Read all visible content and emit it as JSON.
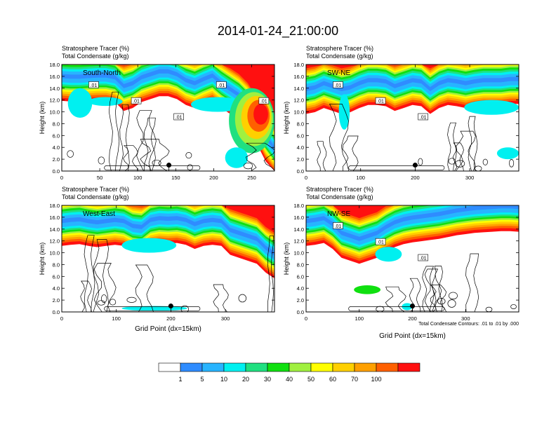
{
  "title": "2014-01-24_21:00:00",
  "chart_data": [
    {
      "type": "heatmap",
      "label": "South-North",
      "var_labels": [
        "Stratosphere Tracer   (%)",
        "Total Condensate   (g/kg)"
      ],
      "ylabel": "Height (km)",
      "xlabel": "",
      "xlim": [
        0,
        280
      ],
      "ylim": [
        0,
        18
      ],
      "xticks": [
        0,
        50,
        100,
        150,
        200,
        250
      ],
      "yticks": [
        "0.0",
        "2.0",
        "4.0",
        "6.0",
        "8.0",
        "10.0",
        "12.0",
        "14.0",
        "16.0",
        "18.0"
      ],
      "contour_labels": [
        ".01",
        ".01",
        ".01",
        ".01",
        ".01"
      ],
      "marker_x": 141,
      "marker_y": 1.0,
      "tracer_base_km": [
        15.7,
        15.6,
        15.6,
        15.7,
        15.8,
        15.8,
        15.5,
        14.0,
        14.5,
        15.5,
        16.0,
        16.5,
        16.5,
        16.0,
        15.0,
        14.5,
        15.2,
        15.8,
        14.5,
        13.5,
        12.5,
        11.0,
        8.5,
        5.5,
        3.5
      ],
      "secondary_features": [
        {
          "x0": 170,
          "x1": 240,
          "y0": 10.0,
          "y1": 12.5,
          "value": 5
        },
        {
          "x0": 220,
          "x1": 280,
          "y0": 3.0,
          "y1": 14.0,
          "value": 70
        },
        {
          "x0": 8,
          "x1": 40,
          "y0": 9.0,
          "y1": 14.0,
          "value": 5
        },
        {
          "x0": 35,
          "x1": 80,
          "y0": 11.0,
          "y1": 12.5,
          "value": 5
        },
        {
          "x0": 215,
          "x1": 245,
          "y0": 0.5,
          "y1": 4.0,
          "value": 5
        }
      ]
    },
    {
      "type": "heatmap",
      "label": "SW-NE",
      "var_labels": [
        "Stratosphere Tracer   (%)",
        "Total Condensate   (g/kg)"
      ],
      "ylabel": "Height (km)",
      "xlabel": "",
      "xlim": [
        0,
        390
      ],
      "ylim": [
        0,
        18
      ],
      "xticks": [
        0,
        100,
        200,
        300
      ],
      "yticks": [
        "0.0",
        "2.0",
        "4.0",
        "6.0",
        "8.0",
        "10.0",
        "12.0",
        "14.0",
        "16.0",
        "18.0"
      ],
      "contour_labels": [
        ".01",
        ".01",
        ".01"
      ],
      "marker_x": 200,
      "marker_y": 1.0,
      "tracer_base_km": [
        13.5,
        13.8,
        14.5,
        14.0,
        13.5,
        13.8,
        14.5,
        15.0,
        15.0,
        14.8,
        14.0,
        14.5,
        15.0,
        14.8,
        13.5,
        14.5,
        15.0,
        14.8,
        14.5,
        14.8,
        15.0,
        15.0,
        15.0,
        15.2,
        15.2
      ],
      "secondary_features": [
        {
          "x0": 290,
          "x1": 390,
          "y0": 9.5,
          "y1": 12.0,
          "value": 5
        },
        {
          "x0": 60,
          "x1": 80,
          "y0": 7.0,
          "y1": 13.0,
          "value": 5
        },
        {
          "x0": 350,
          "x1": 390,
          "y0": 2.0,
          "y1": 4.0,
          "value": 5
        }
      ]
    },
    {
      "type": "heatmap",
      "label": "West-East",
      "var_labels": [
        "Stratosphere Tracer   (%)",
        "Total Condensate   (g/kg)"
      ],
      "ylabel": "Height (km)",
      "xlabel": "Grid Point  (dx=15km)",
      "xlim": [
        0,
        390
      ],
      "ylim": [
        0,
        18
      ],
      "xticks": [
        0,
        100,
        200,
        300
      ],
      "yticks": [
        "0.0",
        "2.0",
        "4.0",
        "6.0",
        "8.0",
        "10.0",
        "12.0",
        "14.0",
        "16.0",
        "18.0"
      ],
      "contour_labels": [],
      "marker_x": 200,
      "marker_y": 1.0,
      "tracer_base_km": [
        15.0,
        15.2,
        15.3,
        15.0,
        14.8,
        15.0,
        15.2,
        15.0,
        14.2,
        14.0,
        15.2,
        15.5,
        15.4,
        15.5,
        15.2,
        14.5,
        15.0,
        15.2,
        15.0,
        13.5,
        13.0,
        12.5,
        12.0,
        10.5,
        9.5
      ],
      "secondary_features": [
        {
          "x0": 110,
          "x1": 210,
          "y0": 10.0,
          "y1": 12.5,
          "value": 5
        },
        {
          "x0": 110,
          "x1": 230,
          "y0": 0.2,
          "y1": 1.0,
          "value": 5
        }
      ]
    },
    {
      "type": "heatmap",
      "label": "NW-SE",
      "var_labels": [
        "Stratosphere Tracer   (%)",
        "Total Condensate   (g/kg)"
      ],
      "ylabel": "Height (km)",
      "xlabel": "Grid Point  (dx=15km)",
      "xlim": [
        0,
        400
      ],
      "ylim": [
        0,
        18
      ],
      "xticks": [
        0,
        100,
        200,
        300
      ],
      "yticks": [
        "0.0",
        "2.0",
        "4.0",
        "6.0",
        "8.0",
        "10.0",
        "12.0",
        "14.0",
        "16.0",
        "18.0"
      ],
      "contour_labels": [
        ".01",
        ".01",
        ".01"
      ],
      "footnote": "Total Condensate Contours: .01 to .01 by .000",
      "marker_x": 200,
      "marker_y": 1.0,
      "tracer_base_km": [
        15.0,
        15.2,
        15.5,
        14.5,
        13.0,
        12.5,
        12.0,
        12.5,
        13.0,
        14.0,
        14.8,
        15.3,
        15.6,
        15.8,
        16.0,
        16.2,
        16.5,
        16.8,
        17.0,
        17.2,
        17.3,
        17.4,
        17.5,
        17.5,
        17.4
      ],
      "secondary_features": [
        {
          "x0": 130,
          "x1": 180,
          "y0": 8.5,
          "y1": 11.0,
          "value": 5
        },
        {
          "x0": 90,
          "x1": 140,
          "y0": 3.0,
          "y1": 4.5,
          "value": 20
        },
        {
          "x0": 180,
          "x1": 200,
          "y0": 0.3,
          "y1": 1.5,
          "value": 5
        }
      ]
    }
  ],
  "colorbar": {
    "labels": [
      "1",
      "5",
      "10",
      "20",
      "30",
      "40",
      "50",
      "60",
      "70",
      "100"
    ],
    "colors": [
      "#ffffff",
      "#2f8cff",
      "#28b4ff",
      "#00f0f0",
      "#20e080",
      "#10e010",
      "#a0f040",
      "#ffff00",
      "#ffd000",
      "#ffa000",
      "#ff6000",
      "#ff1010"
    ]
  }
}
